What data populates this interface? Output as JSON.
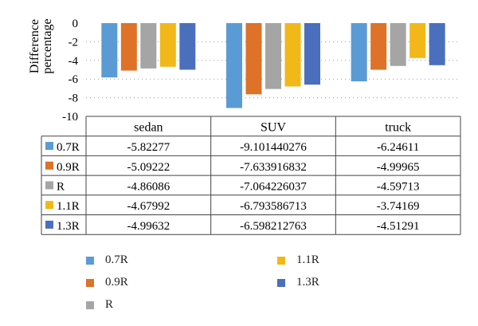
{
  "chart_data": {
    "type": "bar",
    "ylabel": "Difference percentage",
    "ylim": [
      -10,
      0
    ],
    "yticks": [
      0,
      -2,
      -4,
      -6,
      -8,
      -10
    ],
    "grid": true,
    "categories": [
      "sedan",
      "SUV",
      "truck"
    ],
    "series": [
      {
        "name": "0.7R",
        "color": "#5b9bd5",
        "labels": [
          "-5.82277",
          "-9.101440276",
          "-6.24611"
        ],
        "values": [
          -5.82277,
          -9.101440276,
          -6.24611
        ]
      },
      {
        "name": "0.9R",
        "color": "#dd7228",
        "labels": [
          "-5.09222",
          "-7.633916832",
          "-4.99965"
        ],
        "values": [
          -5.09222,
          -7.633916832,
          -4.99965
        ]
      },
      {
        "name": "R",
        "color": "#a5a5a5",
        "labels": [
          "-4.86086",
          "-7.064226037",
          "-4.59713"
        ],
        "values": [
          -4.86086,
          -7.064226037,
          -4.59713
        ]
      },
      {
        "name": "1.1R",
        "color": "#f2b81a",
        "labels": [
          "-4.67992",
          "-6.793586713",
          "-3.74169"
        ],
        "values": [
          -4.67992,
          -6.793586713,
          -3.74169
        ]
      },
      {
        "name": "1.3R",
        "color": "#4a6fbd",
        "labels": [
          "-4.99632",
          "-6.598212763",
          "-4.51291"
        ],
        "values": [
          -4.99632,
          -6.598212763,
          -4.51291
        ]
      }
    ],
    "legend_position": "bottom"
  }
}
